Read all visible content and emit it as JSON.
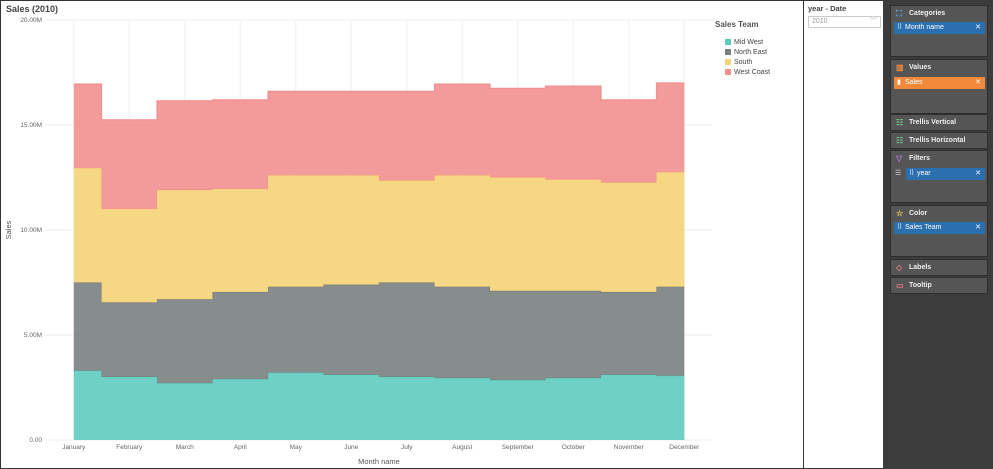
{
  "chart": {
    "title": "Sales (2010)",
    "xlabel": "Month name",
    "ylabel": "Sales",
    "y_ticks": [
      "0.00",
      "5.00M",
      "10.00M",
      "15.00M",
      "20.00M"
    ],
    "legend_title": "Sales Team"
  },
  "chart_data": {
    "type": "area",
    "step": true,
    "stacked": true,
    "title": "Sales (2010)",
    "xlabel": "Month name",
    "ylabel": "Sales",
    "ylim": [
      0,
      20000000
    ],
    "categories": [
      "January",
      "February",
      "March",
      "April",
      "May",
      "June",
      "July",
      "August",
      "September",
      "October",
      "November",
      "December"
    ],
    "series": [
      {
        "name": "Mid West",
        "color": "#5fcbbf",
        "values": [
          3300000,
          3000000,
          2700000,
          2900000,
          3200000,
          3100000,
          3000000,
          2950000,
          2850000,
          2950000,
          3100000,
          3050000
        ]
      },
      {
        "name": "North East",
        "color": "#7a7f80",
        "values": [
          4200000,
          3550000,
          4000000,
          4150000,
          4100000,
          4300000,
          4500000,
          4350000,
          4250000,
          4150000,
          3950000,
          4250000
        ]
      },
      {
        "name": "South",
        "color": "#f5d477",
        "values": [
          5450000,
          4450000,
          5200000,
          4900000,
          5300000,
          5200000,
          4850000,
          5300000,
          5400000,
          5300000,
          5200000,
          5450000
        ]
      },
      {
        "name": "West Coast",
        "color": "#f28f8f",
        "values": [
          4000000,
          4250000,
          4250000,
          4250000,
          4000000,
          4000000,
          4250000,
          4350000,
          4250000,
          4450000,
          3950000,
          4250000
        ]
      }
    ],
    "grid": true,
    "legend_position": "right"
  },
  "filter": {
    "title": "year - Date",
    "value": "2010"
  },
  "side_panel": {
    "categories": {
      "title": "Categories",
      "item": "Month name"
    },
    "values": {
      "title": "Values",
      "item": "Sales"
    },
    "trellis_vertical": {
      "title": "Trellis Vertical"
    },
    "trellis_horizontal": {
      "title": "Trellis Horizontal"
    },
    "filters": {
      "title": "Filters",
      "item": "year"
    },
    "color": {
      "title": "Color",
      "item": "Sales Team"
    },
    "labels": {
      "title": "Labels"
    },
    "tooltip": {
      "title": "Tooltip"
    }
  }
}
